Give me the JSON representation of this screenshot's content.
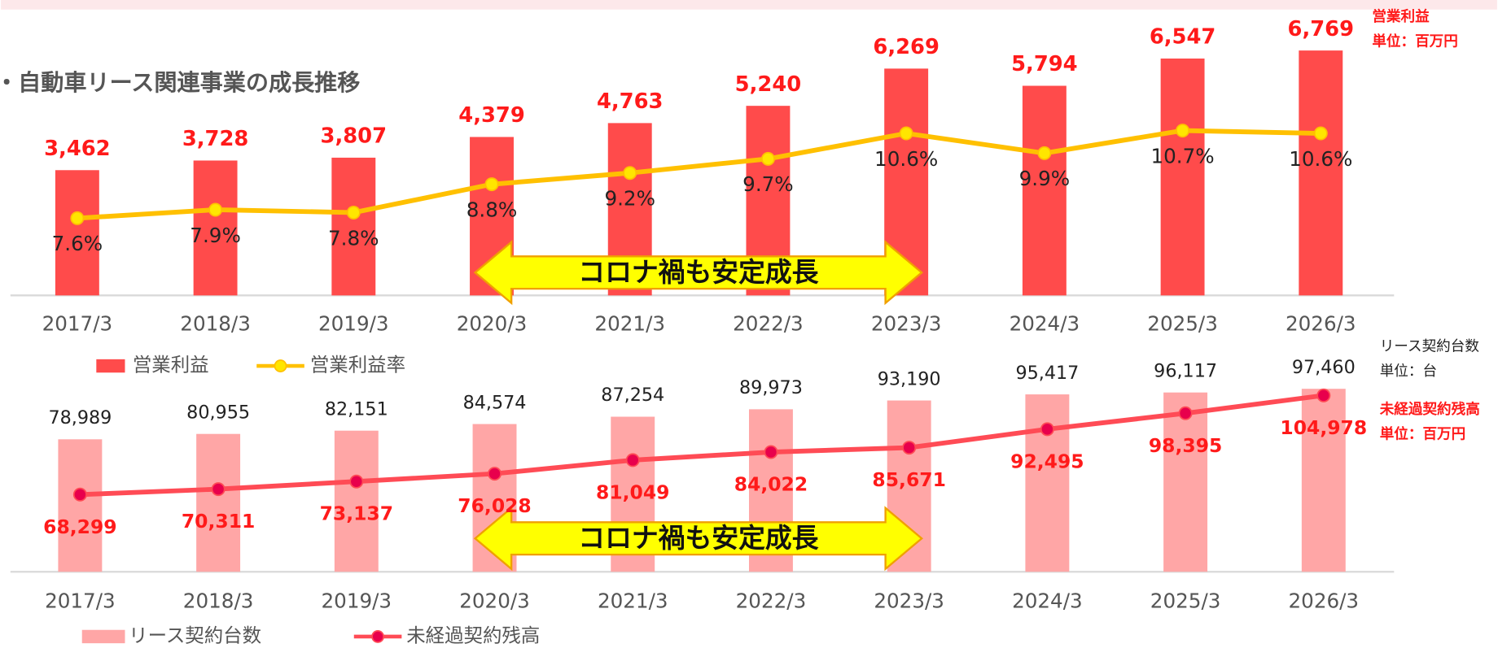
{
  "chart_data": [
    {
      "type": "bar-line",
      "title": "自動車リース関連事業の成長推移",
      "categories": [
        "2017/3",
        "2018/3",
        "2019/3",
        "2020/3",
        "2021/3",
        "2022/3",
        "2023/3",
        "2024/3",
        "2025/3",
        "2026/3"
      ],
      "series": [
        {
          "name": "営業利益",
          "color": "#ff4b4b",
          "values": [
            3462,
            3728,
            3807,
            4379,
            4763,
            5240,
            6269,
            5794,
            6547,
            6769
          ],
          "value_labels": [
            "3,462",
            "3,728",
            "3,807",
            "4,379",
            "4,763",
            "5,240",
            "6,269",
            "5,794",
            "6,547",
            "6,769"
          ]
        },
        {
          "name": "営業利益率",
          "color": "#ffc000",
          "marker_color": "#ffe600",
          "axis": "y2",
          "values": [
            7.6,
            7.9,
            7.8,
            8.8,
            9.2,
            9.7,
            10.6,
            9.9,
            10.7,
            10.6
          ],
          "value_labels": [
            "7.6%",
            "7.9%",
            "7.8%",
            "8.8%",
            "9.2%",
            "9.7%",
            "10.6%",
            "9.9%",
            "10.7%",
            "10.6%"
          ]
        }
      ],
      "annotation": "コロナ禍も安定成長",
      "unit_labels": [
        "営業利益",
        "単位：百万円"
      ]
    },
    {
      "type": "bar-line",
      "categories": [
        "2017/3",
        "2018/3",
        "2019/3",
        "2020/3",
        "2021/3",
        "2022/3",
        "2023/3",
        "2024/3",
        "2025/3",
        "2026/3"
      ],
      "series": [
        {
          "name": "リース契約台数",
          "color": "#ffa6a6",
          "values": [
            78989,
            80955,
            82151,
            84574,
            87254,
            89973,
            93190,
            95417,
            96117,
            97460
          ],
          "value_labels": [
            "78,989",
            "80,955",
            "82,151",
            "84,574",
            "87,254",
            "89,973",
            "93,190",
            "95,417",
            "96,117",
            "97,460"
          ]
        },
        {
          "name": "未経過契約残高",
          "color": "#ff4b55",
          "marker_color": "#e8004c",
          "axis": "y2",
          "values": [
            68299,
            70311,
            73137,
            76028,
            81049,
            84022,
            85671,
            92495,
            98395,
            104978
          ],
          "value_labels": [
            "68,299",
            "70,311",
            "73,137",
            "76,028",
            "81,049",
            "84,022",
            "85,671",
            "92,495",
            "98,395",
            "104,978"
          ]
        }
      ],
      "annotation": "コロナ禍も安定成長",
      "unit_labels": [
        "リース契約台数",
        "単位：台",
        "未経過契約残高",
        "単位：百万円"
      ]
    }
  ]
}
